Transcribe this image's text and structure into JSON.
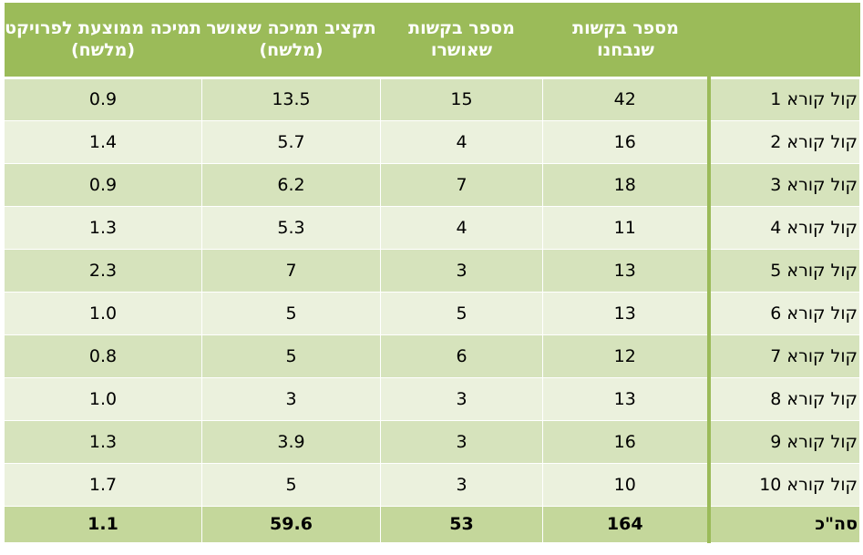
{
  "headers": {
    "label": "",
    "requests_examined": "מספר בקשות שנבחנו",
    "requests_approved": "מספר בקשות שאושרו",
    "approved_budget": "תקציב תמיכה שאושר (מלשח)",
    "avg_support": "תמיכה ממוצעת לפרויקט (מלשח)"
  },
  "rows": [
    {
      "label": "קול קורא 1",
      "examined": "42",
      "approved": "15",
      "budget": "13.5",
      "avg": "0.9"
    },
    {
      "label": "קול קורא 2",
      "examined": "16",
      "approved": "4",
      "budget": "5.7",
      "avg": "1.4"
    },
    {
      "label": "קול קורא 3",
      "examined": "18",
      "approved": "7",
      "budget": "6.2",
      "avg": "0.9"
    },
    {
      "label": "קול קורא 4",
      "examined": "11",
      "approved": "4",
      "budget": "5.3",
      "avg": "1.3"
    },
    {
      "label": "קול קורא 5",
      "examined": "13",
      "approved": "3",
      "budget": "7",
      "avg": "2.3"
    },
    {
      "label": "קול קורא 6",
      "examined": "13",
      "approved": "5",
      "budget": "5",
      "avg": "1.0"
    },
    {
      "label": "קול קורא 7",
      "examined": "12",
      "approved": "6",
      "budget": "5",
      "avg": "0.8"
    },
    {
      "label": "קול קורא 8",
      "examined": "13",
      "approved": "3",
      "budget": "3",
      "avg": "1.0"
    },
    {
      "label": "קול קורא 9",
      "examined": "16",
      "approved": "3",
      "budget": "3.9",
      "avg": "1.3"
    },
    {
      "label": "קול קורא 10",
      "examined": "10",
      "approved": "3",
      "budget": "5",
      "avg": "1.7"
    }
  ],
  "total": {
    "label": "סה\"כ",
    "examined": "164",
    "approved": "53",
    "budget": "59.6",
    "avg": "1.1"
  },
  "colors": {
    "header": "#9bbb59",
    "row_dark": "#d6e3bc",
    "row_light": "#ebf1dd",
    "total": "#c4d79b"
  }
}
